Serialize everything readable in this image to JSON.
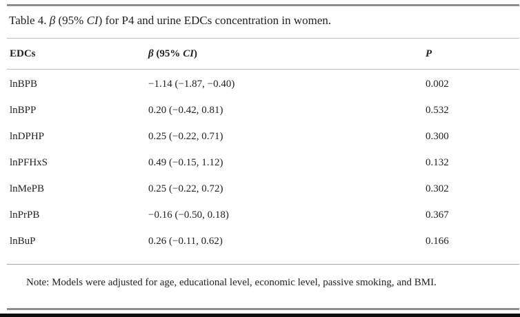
{
  "table": {
    "title": {
      "prefix": "Table 4. ",
      "beta": "β",
      "mid": " (95% ",
      "ci": "CI",
      "suffix": ") for P4 and urine EDCs concentration in women."
    },
    "columns": {
      "edc_label": "EDCs",
      "beta_header": {
        "beta": "β",
        "mid": " (95% ",
        "ci": "CI",
        "close": ")"
      },
      "p_label": "P"
    },
    "rows": [
      {
        "edc": "lnBPB",
        "beta_ci": "−1.14 (−1.87, −0.40)",
        "p": "0.002"
      },
      {
        "edc": "lnBPP",
        "beta_ci": "0.20 (−0.42, 0.81)",
        "p": "0.532"
      },
      {
        "edc": "lnDPHP",
        "beta_ci": "0.25 (−0.22, 0.71)",
        "p": "0.300"
      },
      {
        "edc": "lnPFHxS",
        "beta_ci": "0.49 (−0.15, 1.12)",
        "p": "0.132"
      },
      {
        "edc": "lnMePB",
        "beta_ci": "0.25 (−0.22, 0.72)",
        "p": "0.302"
      },
      {
        "edc": "lnPrPB",
        "beta_ci": "−0.16 (−0.50, 0.18)",
        "p": "0.367"
      },
      {
        "edc": "lnBuP",
        "beta_ci": "0.26 (−0.11, 0.62)",
        "p": "0.166"
      }
    ],
    "note": "Note: Models were adjusted for age, educational level, economic level, passive smoking, and BMI.",
    "colors": {
      "text": "#222222",
      "rule_heavy": "#8e8e8e",
      "rule_light": "#bdbdbd",
      "rule_black": "#0d0d0d",
      "background": "#ffffff"
    }
  }
}
